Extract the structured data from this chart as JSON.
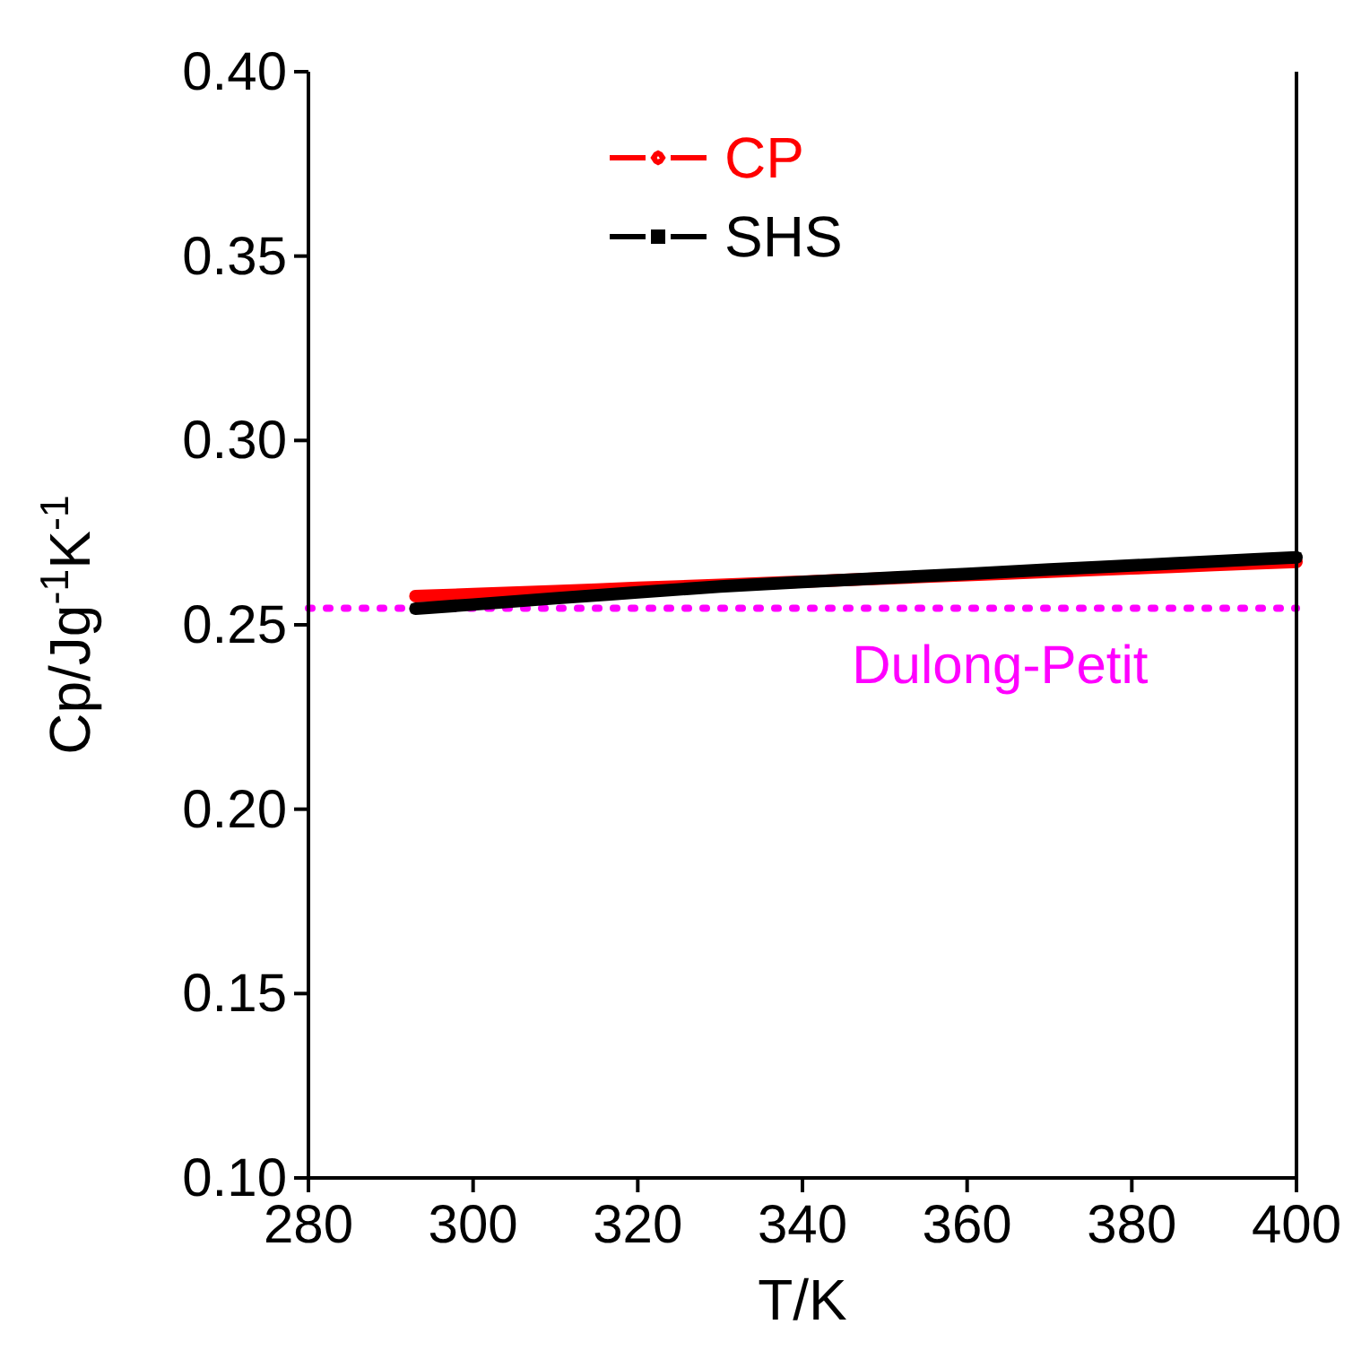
{
  "chart_data": {
    "type": "line",
    "xlabel": "T/K",
    "ylabel": "Cp/Jg$^{-1}$K$^{-1}$",
    "xlim": [
      280,
      400
    ],
    "xticks": [
      280,
      300,
      320,
      340,
      360,
      380,
      400
    ],
    "ylim": [
      0.1,
      0.4
    ],
    "yticks": [
      {
        "value": 0.1,
        "label": "0.10"
      },
      0.15,
      {
        "value": 0.2,
        "label": "0.20"
      },
      0.25,
      {
        "value": 0.3,
        "label": "0.30"
      },
      0.35,
      {
        "value": 0.4,
        "label": "0.40"
      }
    ],
    "grid": false,
    "legend": "top",
    "line_style": "solid",
    "series": [
      {
        "name": "CP",
        "color": "#ff0000",
        "marker": "circle",
        "x": [
          293,
          300,
          310,
          320,
          330,
          340,
          350,
          360,
          370,
          380,
          390,
          400
        ],
        "values": [
          0.2578,
          0.2583,
          0.2591,
          0.26,
          0.2608,
          0.2617,
          0.2626,
          0.2635,
          0.2644,
          0.2653,
          0.2662,
          0.2671
        ]
      },
      {
        "name": "SHS",
        "color": "#000000",
        "marker": "square",
        "x": [
          293,
          300,
          310,
          320,
          330,
          340,
          350,
          360,
          370,
          380,
          390,
          400
        ],
        "values": [
          0.2544,
          0.2555,
          0.2572,
          0.2588,
          0.2604,
          0.2616,
          0.2627,
          0.2638,
          0.265,
          0.2661,
          0.2672,
          0.2683
        ]
      }
    ],
    "ref_lines": [
      {
        "axis": "y",
        "value": 0.2545,
        "label": "Dulong-Petit",
        "color": "#ff00ff",
        "line_style": "dotted"
      }
    ]
  }
}
